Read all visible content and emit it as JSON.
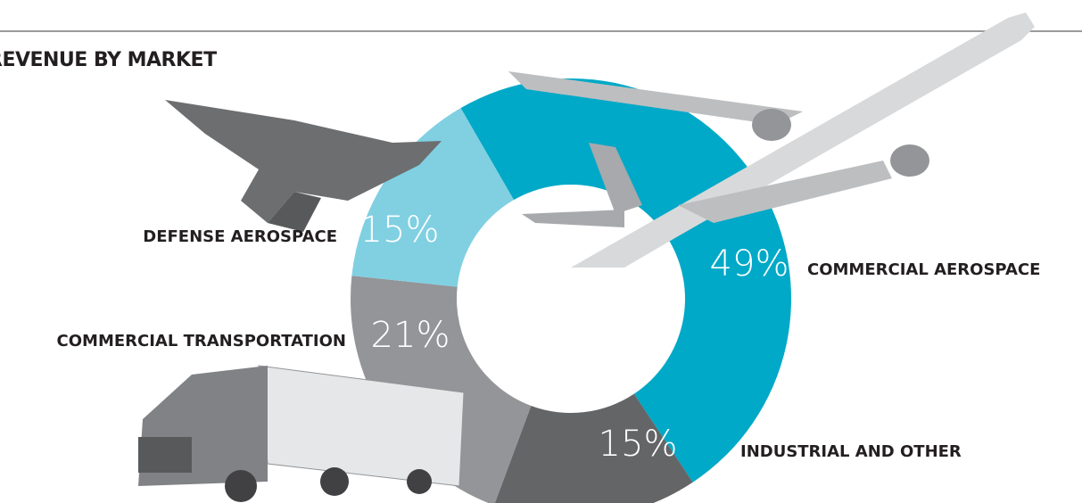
{
  "chart_data": {
    "type": "pie",
    "donut": true,
    "title": "REVENUE BY MARKET",
    "categories": [
      "COMMERCIAL AEROSPACE",
      "INDUSTRIAL AND OTHER",
      "COMMERCIAL TRANSPORTATION",
      "DEFENSE AEROSPACE"
    ],
    "values": [
      49,
      15,
      21,
      15
    ],
    "value_labels": [
      "49%",
      "15%",
      "21%",
      "15%"
    ],
    "colors": [
      "#00a9c7",
      "#646567",
      "#939598",
      "#80d0e2"
    ]
  }
}
